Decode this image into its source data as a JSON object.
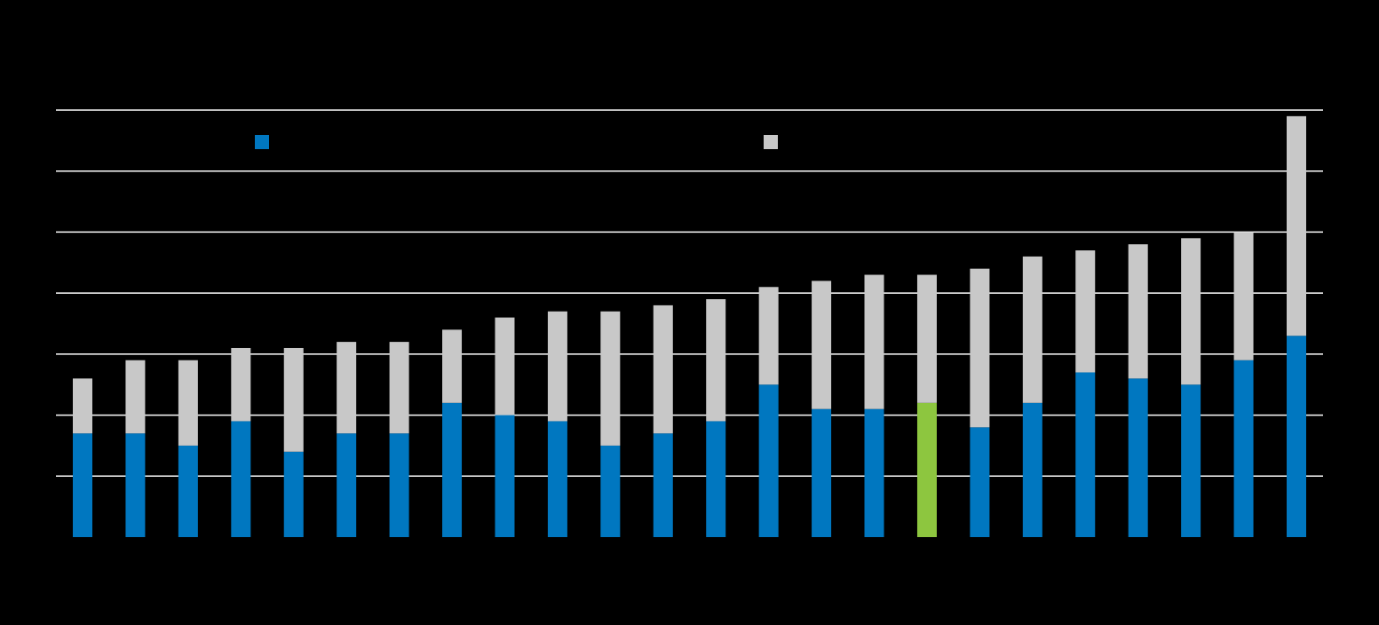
{
  "chart_data": {
    "type": "bar",
    "stacked": true,
    "title": "",
    "xlabel": "",
    "ylabel": "",
    "ylim": [
      0,
      7
    ],
    "grid": true,
    "legend_position": "top",
    "categories": [
      "",
      "",
      "",
      "",
      "",
      "",
      "",
      "",
      "",
      "",
      "",
      "",
      "",
      "",
      "",
      "",
      "",
      "",
      "",
      "",
      "",
      "",
      "",
      ""
    ],
    "highlight_index": 16,
    "colors": {
      "series_1": "#0077C0",
      "series_2": "#C8C8C8",
      "highlight": "#8DC63F",
      "background": "#000000",
      "grid": "#FFFFFF"
    },
    "series": [
      {
        "values": [
          1.7,
          1.7,
          1.5,
          1.9,
          1.4,
          1.7,
          1.7,
          2.2,
          2.0,
          1.9,
          1.5,
          1.7,
          1.9,
          2.5,
          2.1,
          2.1,
          2.2,
          1.8,
          2.2,
          2.7,
          2.6,
          2.5,
          2.9,
          3.3
        ]
      },
      {
        "values": [
          0.9,
          1.2,
          1.4,
          1.2,
          1.7,
          1.5,
          1.5,
          1.2,
          1.6,
          1.8,
          2.2,
          2.1,
          2.0,
          1.6,
          2.1,
          2.2,
          2.1,
          2.6,
          2.4,
          2.0,
          2.2,
          2.4,
          2.1,
          3.6
        ]
      }
    ]
  }
}
